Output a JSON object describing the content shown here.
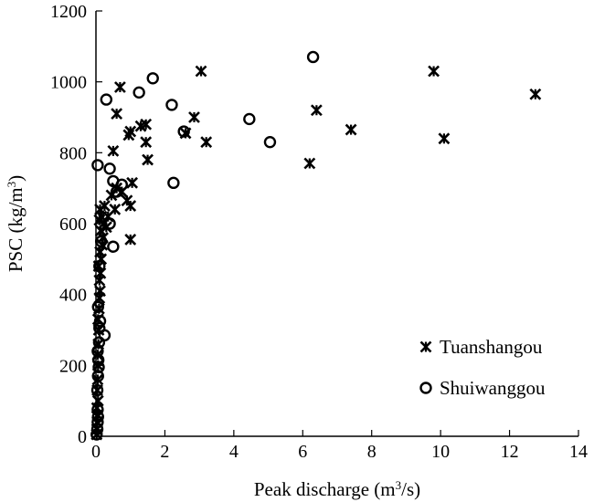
{
  "chart_data": {
    "type": "scatter",
    "xlim": [
      0,
      14
    ],
    "ylim": [
      0,
      1200
    ],
    "xticks": [
      0,
      2,
      4,
      6,
      8,
      10,
      12,
      14
    ],
    "yticks": [
      0,
      200,
      400,
      600,
      800,
      1000,
      1200
    ],
    "grid": false,
    "legend_position": "bottom-right",
    "series": [
      {
        "name": "Tuanshangou",
        "marker": "star-x",
        "color": "#000000",
        "points": [
          [
            0.02,
            5
          ],
          [
            0.03,
            20
          ],
          [
            0.04,
            40
          ],
          [
            0.05,
            60
          ],
          [
            0.03,
            80
          ],
          [
            0.06,
            100
          ],
          [
            0.04,
            130
          ],
          [
            0.05,
            160
          ],
          [
            0.06,
            200
          ],
          [
            0.05,
            230
          ],
          [
            0.07,
            260
          ],
          [
            0.08,
            300
          ],
          [
            0.06,
            330
          ],
          [
            0.09,
            360
          ],
          [
            0.1,
            390
          ],
          [
            0.12,
            410
          ],
          [
            0.1,
            440
          ],
          [
            0.13,
            460
          ],
          [
            0.08,
            480
          ],
          [
            0.15,
            500
          ],
          [
            0.12,
            520
          ],
          [
            0.18,
            540
          ],
          [
            0.2,
            560
          ],
          [
            0.14,
            580
          ],
          [
            0.22,
            600
          ],
          [
            0.1,
            610
          ],
          [
            0.16,
            620
          ],
          [
            0.12,
            640
          ],
          [
            0.25,
            650
          ],
          [
            0.3,
            590
          ],
          [
            0.35,
            620
          ],
          [
            0.45,
            680
          ],
          [
            0.55,
            640
          ],
          [
            0.6,
            700
          ],
          [
            0.75,
            690
          ],
          [
            0.9,
            665
          ],
          [
            1.0,
            650
          ],
          [
            1.05,
            715
          ],
          [
            1.0,
            555
          ],
          [
            0.5,
            805
          ],
          [
            0.6,
            910
          ],
          [
            0.7,
            985
          ],
          [
            0.95,
            850
          ],
          [
            1.0,
            860
          ],
          [
            1.3,
            875
          ],
          [
            1.45,
            880
          ],
          [
            1.45,
            830
          ],
          [
            1.5,
            780
          ],
          [
            2.6,
            855
          ],
          [
            2.85,
            900
          ],
          [
            3.05,
            1030
          ],
          [
            3.2,
            830
          ],
          [
            6.2,
            770
          ],
          [
            6.4,
            920
          ],
          [
            7.4,
            865
          ],
          [
            9.8,
            1030
          ],
          [
            10.1,
            840
          ],
          [
            12.75,
            965
          ]
        ]
      },
      {
        "name": "Shuiwanggou",
        "marker": "open-circle",
        "color": "#000000",
        "points": [
          [
            0.02,
            5
          ],
          [
            0.04,
            20
          ],
          [
            0.05,
            40
          ],
          [
            0.06,
            55
          ],
          [
            0.05,
            75
          ],
          [
            0.04,
            130
          ],
          [
            0.06,
            170
          ],
          [
            0.08,
            195
          ],
          [
            0.07,
            215
          ],
          [
            0.05,
            240
          ],
          [
            0.09,
            265
          ],
          [
            0.1,
            305
          ],
          [
            0.12,
            325
          ],
          [
            0.25,
            285
          ],
          [
            0.06,
            365
          ],
          [
            0.1,
            480
          ],
          [
            0.15,
            550
          ],
          [
            0.05,
            765
          ],
          [
            0.4,
            600
          ],
          [
            0.5,
            535
          ],
          [
            0.4,
            755
          ],
          [
            0.5,
            720
          ],
          [
            0.6,
            690
          ],
          [
            0.75,
            710
          ],
          [
            0.3,
            950
          ],
          [
            1.25,
            970
          ],
          [
            1.65,
            1010
          ],
          [
            2.2,
            935
          ],
          [
            2.25,
            715
          ],
          [
            2.55,
            860
          ],
          [
            4.45,
            895
          ],
          [
            5.05,
            830
          ],
          [
            6.3,
            1070
          ]
        ]
      }
    ]
  },
  "axes": {
    "x_title_main": "Peak discharge (m",
    "x_title_sup": "3",
    "x_title_end": "/s)",
    "y_title_main": "PSC (kg/m",
    "y_title_sup": "3",
    "y_title_end": ")"
  },
  "legend": {
    "items": [
      "Tuanshangou",
      "Shuiwanggou"
    ]
  }
}
